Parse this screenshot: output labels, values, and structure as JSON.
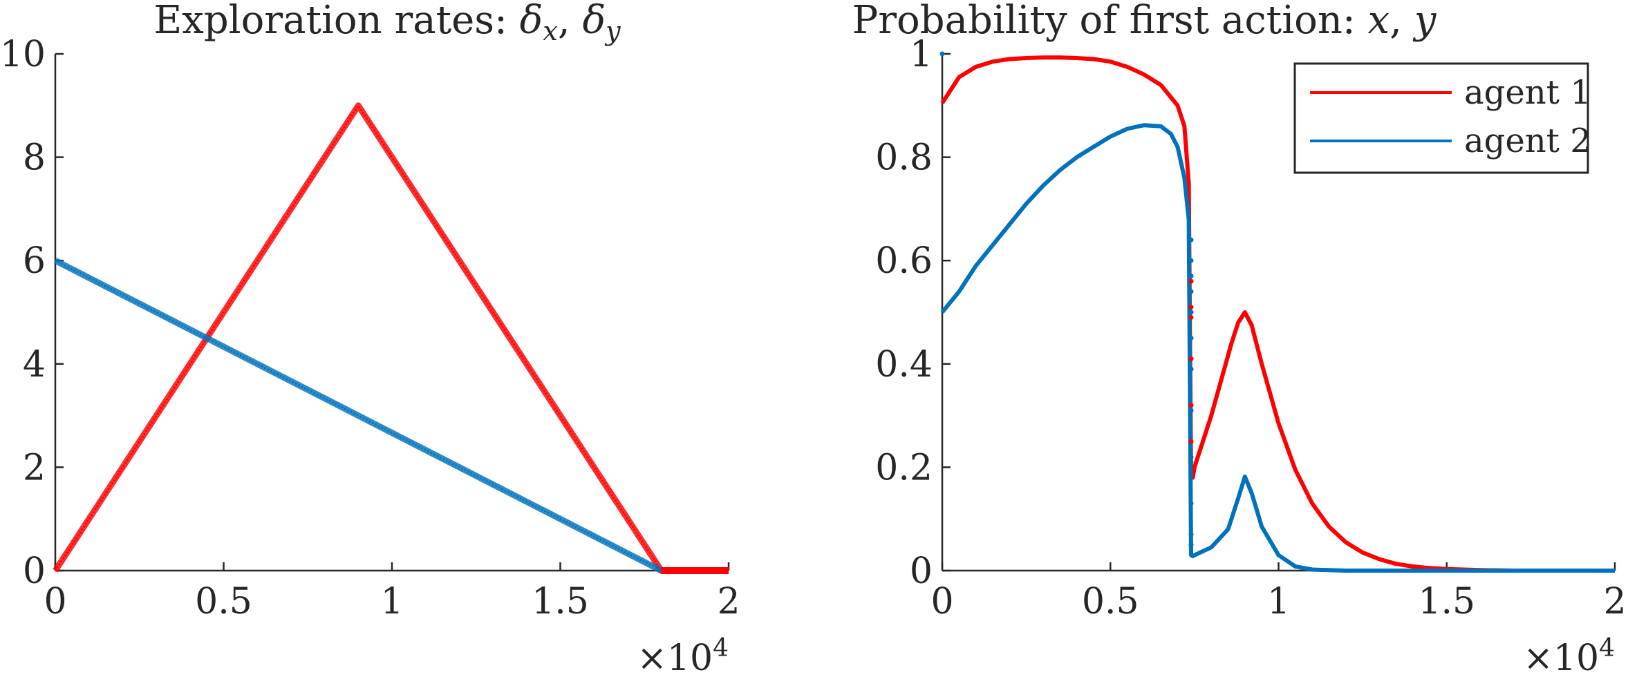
{
  "colors": {
    "series_red": "#ff0000",
    "series_blue": "#0072bd",
    "axes": "#262626",
    "background": "#ffffff"
  },
  "chart_data": [
    {
      "type": "line",
      "title": "Exploration rates: δx, δy",
      "title_parts": {
        "prefix": "Exploration rates: ",
        "sym1": "δ",
        "sub1": "x",
        "sep": ", ",
        "sym2": "δ",
        "sub2": "y"
      },
      "xlim": [
        0,
        20000
      ],
      "ylim": [
        0,
        10
      ],
      "x_ticks": [
        0,
        5000,
        10000,
        15000,
        20000
      ],
      "x_tick_labels": [
        "0",
        "0.5",
        "1",
        "1.5",
        "2"
      ],
      "y_ticks": [
        0,
        2,
        4,
        6,
        8,
        10
      ],
      "y_tick_labels": [
        "0",
        "2",
        "4",
        "6",
        "8",
        "10"
      ],
      "x_exponent_label": "×10",
      "x_exponent_power": "4",
      "grid": false,
      "series": [
        {
          "color": "#ff0000",
          "style": "thick",
          "x": [
            0,
            9000,
            18000,
            20000
          ],
          "y": [
            0,
            9,
            0,
            0
          ]
        },
        {
          "color": "#0072bd",
          "style": "thick",
          "x": [
            0,
            18000
          ],
          "y": [
            6,
            0
          ]
        }
      ]
    },
    {
      "type": "line",
      "title": "Probability of first action: x, y",
      "title_parts": {
        "prefix": "Probability of first action: ",
        "v1": "x",
        "sep": ", ",
        "v2": "y"
      },
      "xlim": [
        0,
        20000
      ],
      "ylim": [
        0,
        1
      ],
      "x_ticks": [
        0,
        5000,
        10000,
        15000,
        20000
      ],
      "x_tick_labels": [
        "0",
        "0.5",
        "1",
        "1.5",
        "2"
      ],
      "y_ticks": [
        0,
        0.2,
        0.4,
        0.6,
        0.8,
        1
      ],
      "y_tick_labels": [
        "0",
        "0.2",
        "0.4",
        "0.6",
        "0.8",
        "1"
      ],
      "x_exponent_label": "×10",
      "x_exponent_power": "4",
      "grid": false,
      "legend": {
        "placement": "top-right",
        "entries": [
          "agent 1",
          "agent 2"
        ]
      },
      "series": [
        {
          "name": "agent 1",
          "color": "#ff0000",
          "x": [
            0,
            500,
            1000,
            1500,
            2000,
            2500,
            3000,
            3500,
            4000,
            4500,
            5000,
            5500,
            6000,
            6500,
            7000,
            7200,
            7330,
            7400,
            7450,
            7500,
            7700,
            8000,
            8300,
            8600,
            8800,
            9000,
            9200,
            9500,
            10000,
            10500,
            11000,
            11500,
            12000,
            12500,
            13000,
            13500,
            14000,
            14500,
            15000,
            16000,
            17000,
            18000,
            19000,
            20000
          ],
          "y": [
            0.905,
            0.955,
            0.975,
            0.985,
            0.99,
            0.992,
            0.993,
            0.993,
            0.992,
            0.99,
            0.985,
            0.975,
            0.96,
            0.94,
            0.9,
            0.86,
            0.75,
            0.18,
            0.18,
            0.2,
            0.24,
            0.3,
            0.37,
            0.44,
            0.48,
            0.5,
            0.475,
            0.4,
            0.285,
            0.195,
            0.13,
            0.085,
            0.055,
            0.035,
            0.022,
            0.013,
            0.008,
            0.005,
            0.003,
            0.001,
            0,
            0,
            0,
            0
          ]
        },
        {
          "name": "agent 2",
          "color": "#0072bd",
          "x": [
            0,
            500,
            1000,
            1500,
            2000,
            2500,
            3000,
            3500,
            4000,
            4500,
            5000,
            5500,
            6000,
            6500,
            6800,
            7000,
            7200,
            7330,
            7400,
            7450,
            7500,
            8000,
            8500,
            8800,
            9000,
            9200,
            9500,
            10000,
            10500,
            11000,
            12000,
            14000,
            16000,
            18000,
            20000
          ],
          "y": [
            0.5,
            0.54,
            0.59,
            0.63,
            0.67,
            0.71,
            0.745,
            0.775,
            0.8,
            0.82,
            0.84,
            0.855,
            0.862,
            0.86,
            0.845,
            0.82,
            0.76,
            0.68,
            0.03,
            0.028,
            0.03,
            0.045,
            0.08,
            0.14,
            0.182,
            0.15,
            0.085,
            0.03,
            0.008,
            0.002,
            0,
            0,
            0,
            0,
            0
          ]
        }
      ],
      "scatter_points": [
        {
          "color": "#ff0000",
          "x": [
            7400,
            7400,
            7400,
            7400,
            7400,
            7400,
            7400,
            7400
          ],
          "y": [
            0.56,
            0.51,
            0.49,
            0.41,
            0.39,
            0.32,
            0.31,
            0.25
          ]
        },
        {
          "color": "#0072bd",
          "x": [
            0,
            7400,
            7400,
            7400,
            7400,
            7400,
            7400,
            7400,
            7400,
            7400,
            7400,
            7400,
            7400,
            7400
          ],
          "y": [
            1.0,
            0.64,
            0.6,
            0.57,
            0.54,
            0.5,
            0.45,
            0.39,
            0.31,
            0.22,
            0.21,
            0.13,
            0.07,
            0.05
          ]
        }
      ]
    }
  ]
}
